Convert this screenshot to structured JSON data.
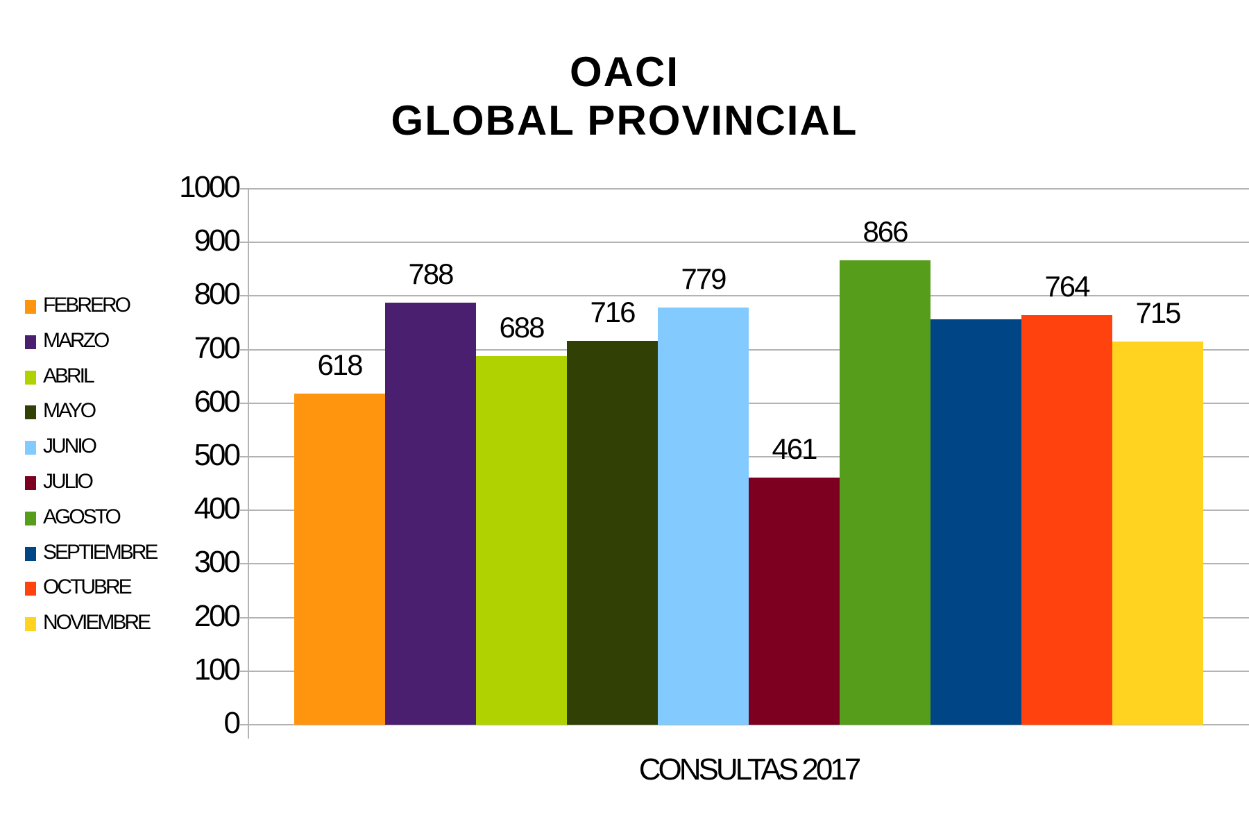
{
  "chart_data": {
    "type": "bar",
    "title": "OACI\nGLOBAL PROVINCIAL",
    "title_lines": [
      "OACI",
      "GLOBAL PROVINCIAL"
    ],
    "xlabel": "CONSULTAS 2017",
    "ylabel": "",
    "categories": [
      "CONSULTAS 2017"
    ],
    "series": [
      {
        "name": "FEBRERO",
        "values": [
          618
        ],
        "color": "#ff950e",
        "label": "618"
      },
      {
        "name": "MARZO",
        "values": [
          788
        ],
        "color": "#4b1f6f",
        "label": "788"
      },
      {
        "name": "ABRIL",
        "values": [
          688
        ],
        "color": "#b0d200",
        "label": "688"
      },
      {
        "name": "MAYO",
        "values": [
          716
        ],
        "color": "#314004",
        "label": "716"
      },
      {
        "name": "JUNIO",
        "values": [
          779
        ],
        "color": "#83caff",
        "label": "779"
      },
      {
        "name": "JULIO",
        "values": [
          461
        ],
        "color": "#7e0021",
        "label": "461"
      },
      {
        "name": "AGOSTO",
        "values": [
          866
        ],
        "color": "#579d1c",
        "label": "866"
      },
      {
        "name": "SEPTIEMBRE",
        "values": [
          757
        ],
        "color": "#004586",
        "label": ""
      },
      {
        "name": "OCTUBRE",
        "values": [
          764
        ],
        "color": "#ff420e",
        "label": "764"
      },
      {
        "name": "NOVIEMBRE",
        "values": [
          715
        ],
        "color": "#ffd320",
        "label": "715"
      }
    ],
    "ylim": [
      0,
      1000
    ],
    "yticks": [
      "0",
      "100",
      "200",
      "300",
      "400",
      "500",
      "600",
      "700",
      "800",
      "900",
      "1000"
    ],
    "grid": true,
    "legend_position": "left"
  }
}
